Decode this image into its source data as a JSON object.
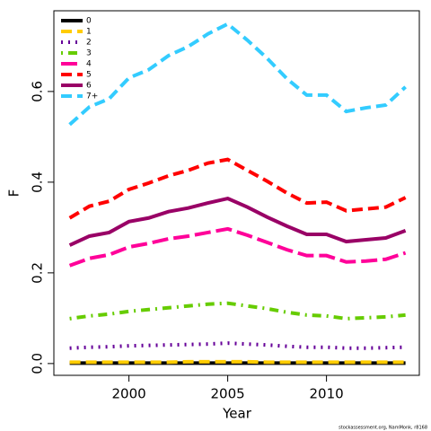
{
  "chart_data": {
    "type": "line",
    "x_label": "Year",
    "y_label": "F",
    "x": [
      1997,
      1998,
      1999,
      2000,
      2001,
      2002,
      2003,
      2004,
      2005,
      2006,
      2007,
      2008,
      2009,
      2010,
      2011,
      2012,
      2013,
      2014
    ],
    "xlim": [
      1996.2,
      2014.7
    ],
    "xticks": [
      2000,
      2005,
      2010
    ],
    "ylim": [
      -0.026,
      0.778
    ],
    "yticks": [
      {
        "value": 0,
        "label": "0.0"
      },
      0.2,
      0.4,
      0.6
    ],
    "legend": "top-left",
    "series": [
      {
        "name": "0",
        "color": "#000000",
        "dash": "solid",
        "values": [
          0.001,
          0.001,
          0.001,
          0.001,
          0.001,
          0.001,
          0.001,
          0.001,
          0.001,
          0.001,
          0.001,
          0.001,
          0.001,
          0.001,
          0.001,
          0.001,
          0.001,
          0.001
        ]
      },
      {
        "name": "1",
        "color": "#FFCC00",
        "dash": "dashed",
        "values": [
          0.003,
          0.003,
          0.003,
          0.003,
          0.003,
          0.003,
          0.004,
          0.004,
          0.004,
          0.004,
          0.003,
          0.003,
          0.003,
          0.003,
          0.003,
          0.003,
          0.003,
          0.003
        ]
      },
      {
        "name": "2",
        "color": "#660099",
        "dash": "dotted",
        "values": [
          0.034,
          0.036,
          0.037,
          0.039,
          0.04,
          0.041,
          0.042,
          0.043,
          0.045,
          0.043,
          0.041,
          0.038,
          0.036,
          0.036,
          0.034,
          0.034,
          0.035,
          0.036
        ]
      },
      {
        "name": "3",
        "color": "#66CC00",
        "dash": "dotdash",
        "values": [
          0.099,
          0.105,
          0.109,
          0.115,
          0.119,
          0.123,
          0.127,
          0.131,
          0.133,
          0.127,
          0.121,
          0.113,
          0.107,
          0.105,
          0.099,
          0.101,
          0.103,
          0.107
        ]
      },
      {
        "name": "4",
        "color": "#FF0099",
        "dash": "longdash",
        "values": [
          0.216,
          0.232,
          0.24,
          0.257,
          0.265,
          0.275,
          0.281,
          0.289,
          0.297,
          0.283,
          0.267,
          0.251,
          0.238,
          0.238,
          0.224,
          0.226,
          0.23,
          0.244
        ]
      },
      {
        "name": "5",
        "color": "#FF0000",
        "dash": "dashed",
        "values": [
          0.321,
          0.347,
          0.358,
          0.384,
          0.398,
          0.414,
          0.426,
          0.442,
          0.45,
          0.426,
          0.402,
          0.376,
          0.354,
          0.356,
          0.337,
          0.341,
          0.345,
          0.366
        ]
      },
      {
        "name": "6",
        "color": "#990066",
        "dash": "solid",
        "values": [
          0.261,
          0.281,
          0.289,
          0.313,
          0.321,
          0.335,
          0.343,
          0.354,
          0.364,
          0.345,
          0.323,
          0.303,
          0.285,
          0.285,
          0.269,
          0.273,
          0.277,
          0.293
        ]
      },
      {
        "name": "7+",
        "color": "#33CCFF",
        "dash": "dashed",
        "values": [
          0.527,
          0.566,
          0.584,
          0.63,
          0.648,
          0.679,
          0.699,
          0.727,
          0.749,
          0.713,
          0.673,
          0.628,
          0.592,
          0.592,
          0.556,
          0.564,
          0.57,
          0.61
        ]
      }
    ],
    "note": "stockassessment.org, NamMonk, r8168"
  }
}
